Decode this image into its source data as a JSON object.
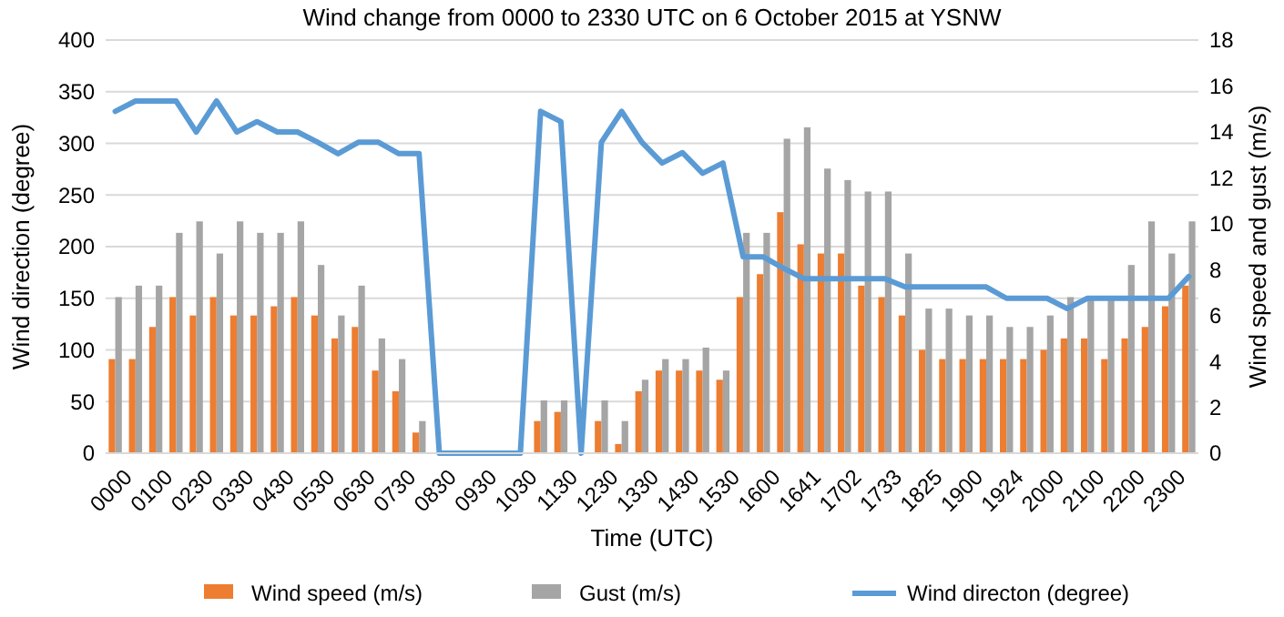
{
  "chart_data": {
    "type": "bar",
    "title": "Wind change from 0000 to 2330 UTC on 6 October 2015 at YSNW",
    "xlabel": "Time (UTC)",
    "ylabel": "Wind direction (degree)",
    "y2label": "Wind speed and gust (m/s)",
    "categories": [
      "0000",
      null,
      "0100",
      null,
      "0230",
      null,
      "0330",
      null,
      "0430",
      null,
      "0530",
      null,
      "0630",
      null,
      "0730",
      null,
      "0830",
      null,
      "0930",
      null,
      "1030",
      null,
      "1130",
      null,
      "1230",
      null,
      "1330",
      null,
      "1430",
      null,
      "1530",
      null,
      "1600",
      null,
      "1641",
      null,
      "1702",
      null,
      "1733",
      null,
      "1825",
      null,
      "1900",
      null,
      "1924",
      null,
      "2000",
      null,
      "2100",
      null,
      "2200",
      null,
      "2300",
      null
    ],
    "series": [
      {
        "name": "Wind speed (m/s)",
        "color": "#ed7d31",
        "axis": "y2",
        "values": [
          4.1,
          4.1,
          5.5,
          6.8,
          6.0,
          6.8,
          6.0,
          6.0,
          6.4,
          6.8,
          6.0,
          5.0,
          5.5,
          3.6,
          2.7,
          0.9,
          0,
          0,
          0,
          0,
          0,
          1.4,
          1.8,
          0,
          1.4,
          0.4,
          2.7,
          3.6,
          3.6,
          3.6,
          3.2,
          6.8,
          7.8,
          10.5,
          9.1,
          8.7,
          8.7,
          7.3,
          6.8,
          6.0,
          4.5,
          4.1,
          4.1,
          4.1,
          4.1,
          4.1,
          4.5,
          5.0,
          5.0,
          4.1,
          5.0,
          5.5,
          6.4,
          7.3
        ]
      },
      {
        "name": "Gust (m/s)",
        "color": "#a5a5a5",
        "axis": "y2",
        "values": [
          6.8,
          7.3,
          7.3,
          9.6,
          10.1,
          8.7,
          10.1,
          9.6,
          9.6,
          10.1,
          8.2,
          6.0,
          7.3,
          5.0,
          4.1,
          1.4,
          0,
          0,
          0,
          0,
          0,
          2.3,
          2.3,
          0,
          2.3,
          1.4,
          3.2,
          4.1,
          4.1,
          4.6,
          3.6,
          9.6,
          9.6,
          13.7,
          14.2,
          12.4,
          11.9,
          11.4,
          11.4,
          8.7,
          6.3,
          6.3,
          6.0,
          6.0,
          5.5,
          5.5,
          6.0,
          6.8,
          6.8,
          6.8,
          8.2,
          10.1,
          8.7,
          10.1
        ]
      },
      {
        "name": "Wind directon (degree)",
        "type": "line",
        "color": "#5b9bd5",
        "axis": "y",
        "values": [
          331,
          341,
          341,
          341,
          311,
          341,
          311,
          321,
          311,
          311,
          301,
          290,
          301,
          301,
          290,
          290,
          0,
          0,
          0,
          0,
          0,
          331,
          321,
          0,
          301,
          331,
          301,
          281,
          291,
          271,
          281,
          190,
          190,
          179,
          169,
          169,
          169,
          169,
          169,
          161,
          161,
          161,
          161,
          161,
          150,
          150,
          150,
          140,
          150,
          150,
          150,
          150,
          150,
          171
        ]
      }
    ],
    "ylim": [
      0,
      400
    ],
    "yticks": [
      0,
      50,
      100,
      150,
      200,
      250,
      300,
      350,
      400
    ],
    "y2lim": [
      0,
      18
    ],
    "y2ticks": [
      0,
      2,
      4,
      6,
      8,
      10,
      12,
      14,
      16,
      18
    ],
    "grid": "y",
    "legend": "bottom",
    "line_style": "solid"
  }
}
